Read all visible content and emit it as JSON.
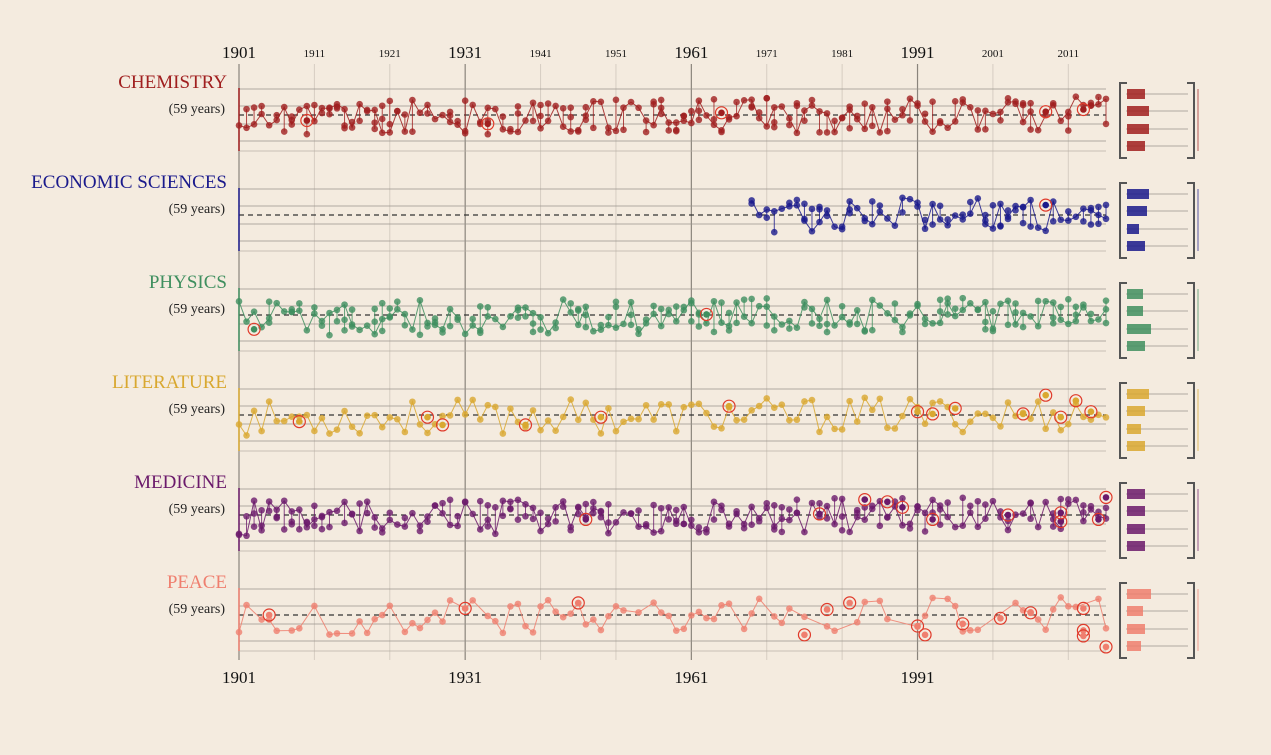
{
  "chart_data": {
    "type": "scatter",
    "x_range": [
      1901,
      2016
    ],
    "top_axis_labels": [
      "1901",
      "1911",
      "1921",
      "1931",
      "1941",
      "1951",
      "1961",
      "1971",
      "1981",
      "1991",
      "2001",
      "2011"
    ],
    "major_years": [
      "1901",
      "1931",
      "1961",
      "1991"
    ],
    "bottom_axis_labels": [
      "1901",
      "1931",
      "1961",
      "1991"
    ],
    "panels": [
      {
        "name": "CHEMISTRY",
        "avg_label": "(59 years)",
        "color": "#a01f1f",
        "start_year": 1901,
        "seed": 11,
        "bars": [
          0.45,
          0.55,
          0.55,
          0.45
        ],
        "highlights": [
          [
            1934,
            -0.8
          ],
          [
            1910,
            -0.5
          ],
          [
            1965,
            0.2
          ],
          [
            2008,
            0.3
          ],
          [
            2013,
            0.5
          ]
        ]
      },
      {
        "name": "ECONOMIC SCIENCES",
        "avg_label": "(59 years)",
        "color": "#1a1a8c",
        "start_year": 1969,
        "seed": 23,
        "bars": [
          0.55,
          0.5,
          0.3,
          0.45
        ],
        "highlights": [
          [
            2008,
            0.9
          ]
        ]
      },
      {
        "name": "PHYSICS",
        "avg_label": "(59 years)",
        "color": "#3f8f5f",
        "start_year": 1901,
        "seed": 37,
        "bars": [
          0.4,
          0.4,
          0.6,
          0.45
        ],
        "highlights": [
          [
            1903,
            -1.3
          ],
          [
            1963,
            0.05
          ]
        ]
      },
      {
        "name": "LITERATURE",
        "avg_label": "(59 years)",
        "color": "#d9a830",
        "start_year": 1901,
        "seed": 53,
        "bars": [
          0.55,
          0.45,
          0.35,
          0.45
        ],
        "highlights": [
          [
            1909,
            -0.6
          ],
          [
            1926,
            -0.2
          ],
          [
            1928,
            -0.9
          ],
          [
            1939,
            -0.9
          ],
          [
            1949,
            -0.2
          ],
          [
            1966,
            0.8
          ],
          [
            1991,
            0.3
          ],
          [
            1993,
            0.1
          ],
          [
            1996,
            0.6
          ],
          [
            2005,
            0.1
          ],
          [
            2008,
            1.8
          ],
          [
            2010,
            -0.2
          ],
          [
            2012,
            1.3
          ],
          [
            2014,
            0.3
          ]
        ]
      },
      {
        "name": "MEDICINE",
        "avg_label": "(59 years)",
        "color": "#6b1a6b",
        "start_year": 1901,
        "seed": 71,
        "bars": [
          0.45,
          0.45,
          0.45,
          0.45
        ],
        "highlights": [
          [
            1947,
            -0.4
          ],
          [
            1978,
            0.1
          ],
          [
            1984,
            1.4
          ],
          [
            1987,
            1.2
          ],
          [
            1989,
            0.7
          ],
          [
            1993,
            -0.4
          ],
          [
            2003,
            0.0
          ],
          [
            2010,
            -0.6
          ],
          [
            2010,
            0.2
          ],
          [
            2015,
            -0.4
          ],
          [
            2016,
            1.6
          ]
        ]
      },
      {
        "name": "PEACE",
        "avg_label": "(59 years)",
        "color": "#ef7f6f",
        "start_year": 1901,
        "seed": 89,
        "bars": [
          0.6,
          0.4,
          0.45,
          0.35
        ],
        "highlights": [
          [
            1905,
            0.0
          ],
          [
            1931,
            0.6
          ],
          [
            1946,
            1.1
          ],
          [
            1976,
            -1.8
          ],
          [
            1979,
            0.5
          ],
          [
            1982,
            1.1
          ],
          [
            1991,
            -1.0
          ],
          [
            1992,
            -1.8
          ],
          [
            1997,
            -0.8
          ],
          [
            2002,
            -0.3
          ],
          [
            2006,
            0.2
          ],
          [
            2013,
            0.6
          ],
          [
            2013,
            -1.4
          ],
          [
            2013,
            -1.9
          ],
          [
            2016,
            -2.9
          ]
        ]
      }
    ]
  }
}
